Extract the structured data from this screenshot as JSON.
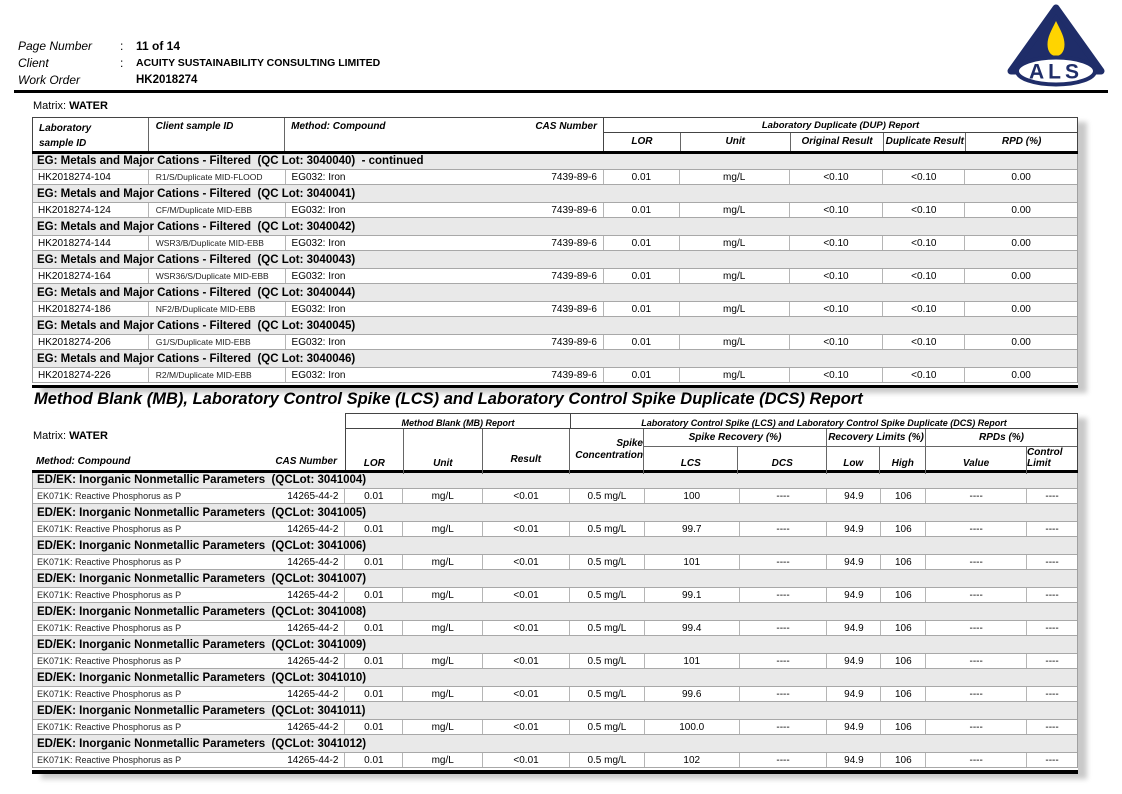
{
  "header": {
    "fields": [
      {
        "label": "Page Number",
        "colon": ":",
        "value": "11 of 14"
      },
      {
        "label": "Client",
        "colon": ":",
        "value": "ACUITY SUSTAINABILITY CONSULTING LIMITED"
      },
      {
        "label": "Work Order",
        "colon": ":",
        "value": "HK2018274"
      }
    ],
    "logo_text": "ALS"
  },
  "colors": {
    "logo_navy": "#1f2d69",
    "logo_yellow": "#ffd400",
    "logo_base_gray": "#b9c0cc",
    "table_bg_gray": "#e9e9e9"
  },
  "dup_table": {
    "matrix_label": "Matrix:",
    "matrix_value": "WATER",
    "span_header": "Laboratory Duplicate (DUP) Report",
    "headers": {
      "lab_line1": "Laboratory",
      "lab_line2": "sample ID",
      "client": "Client sample ID",
      "method": "Method: Compound",
      "cas": "CAS Number",
      "lor": "LOR",
      "unit": "Unit",
      "original": "Original Result",
      "duplicate": "Duplicate Result",
      "rpd": "RPD (%)"
    },
    "groups": [
      {
        "section": "EG: Metals and Major Cations - Filtered  (QC Lot: 3040040)  - continued",
        "lab_id": "HK2018274-104",
        "client_id": "R1/S/Duplicate MID-FLOOD",
        "method": "EG032: Iron",
        "cas": "7439-89-6",
        "lor": "0.01",
        "unit": "mg/L",
        "original": "<0.10",
        "duplicate": "<0.10",
        "rpd": "0.00"
      },
      {
        "section": "EG: Metals and Major Cations - Filtered  (QC Lot: 3040041)",
        "lab_id": "HK2018274-124",
        "client_id": "CF/M/Duplicate MID-EBB",
        "method": "EG032: Iron",
        "cas": "7439-89-6",
        "lor": "0.01",
        "unit": "mg/L",
        "original": "<0.10",
        "duplicate": "<0.10",
        "rpd": "0.00"
      },
      {
        "section": "EG: Metals and Major Cations - Filtered  (QC Lot: 3040042)",
        "lab_id": "HK2018274-144",
        "client_id": "WSR3/B/Duplicate MID-EBB",
        "method": "EG032: Iron",
        "cas": "7439-89-6",
        "lor": "0.01",
        "unit": "mg/L",
        "original": "<0.10",
        "duplicate": "<0.10",
        "rpd": "0.00"
      },
      {
        "section": "EG: Metals and Major Cations - Filtered  (QC Lot: 3040043)",
        "lab_id": "HK2018274-164",
        "client_id": "WSR36/S/Duplicate MID-EBB",
        "method": "EG032: Iron",
        "cas": "7439-89-6",
        "lor": "0.01",
        "unit": "mg/L",
        "original": "<0.10",
        "duplicate": "<0.10",
        "rpd": "0.00"
      },
      {
        "section": "EG: Metals and Major Cations - Filtered  (QC Lot: 3040044)",
        "lab_id": "HK2018274-186",
        "client_id": "NF2/B/Duplicate MID-EBB",
        "method": "EG032: Iron",
        "cas": "7439-89-6",
        "lor": "0.01",
        "unit": "mg/L",
        "original": "<0.10",
        "duplicate": "<0.10",
        "rpd": "0.00"
      },
      {
        "section": "EG: Metals and Major Cations - Filtered  (QC Lot: 3040045)",
        "lab_id": "HK2018274-206",
        "client_id": "G1/S/Duplicate MID-EBB",
        "method": "EG032: Iron",
        "cas": "7439-89-6",
        "lor": "0.01",
        "unit": "mg/L",
        "original": "<0.10",
        "duplicate": "<0.10",
        "rpd": "0.00"
      },
      {
        "section": "EG: Metals and Major Cations - Filtered  (QC Lot: 3040046)",
        "lab_id": "HK2018274-226",
        "client_id": "R2/M/Duplicate MID-EBB",
        "method": "EG032: Iron",
        "cas": "7439-89-6",
        "lor": "0.01",
        "unit": "mg/L",
        "original": "<0.10",
        "duplicate": "<0.10",
        "rpd": "0.00"
      }
    ]
  },
  "mb_section_title": "Method Blank (MB), Laboratory Control Spike (LCS) and Laboratory Control Spike Duplicate (DCS) Report",
  "mb_table": {
    "matrix_label": "Matrix:",
    "matrix_value": "WATER",
    "mb_span": "Method Blank (MB) Report",
    "lcs_span": "Laboratory Control Spike (LCS) and Laboratory Control Spike Duplicate (DCS) Report",
    "headers": {
      "method": "Method: Compound",
      "cas": "CAS Number",
      "lor": "LOR",
      "unit": "Unit",
      "result": "Result",
      "spike_line1": "Spike",
      "spike_line2": "Concentration",
      "spike_recovery": "Spike Recovery (%)",
      "lcs": "LCS",
      "dcs": "DCS",
      "recovery_limits": "Recovery Limits (%)",
      "low": "Low",
      "high": "High",
      "rpds": "RPDs (%)",
      "value": "Value",
      "control_limit": "Control Limit"
    },
    "groups": [
      {
        "section": "ED/EK: Inorganic Nonmetallic Parameters  (QCLot: 3041004)",
        "method": "EK071K: Reactive Phosphorus as P",
        "cas": "14265-44-2",
        "lor": "0.01",
        "unit": "mg/L",
        "result": "<0.01",
        "spike_conc": "0.5 mg/L",
        "lcs": "100",
        "dcs": "----",
        "low": "94.9",
        "high": "106",
        "value": "----",
        "control_limit": "----"
      },
      {
        "section": "ED/EK: Inorganic Nonmetallic Parameters  (QCLot: 3041005)",
        "method": "EK071K: Reactive Phosphorus as P",
        "cas": "14265-44-2",
        "lor": "0.01",
        "unit": "mg/L",
        "result": "<0.01",
        "spike_conc": "0.5 mg/L",
        "lcs": "99.7",
        "dcs": "----",
        "low": "94.9",
        "high": "106",
        "value": "----",
        "control_limit": "----"
      },
      {
        "section": "ED/EK: Inorganic Nonmetallic Parameters  (QCLot: 3041006)",
        "method": "EK071K: Reactive Phosphorus as P",
        "cas": "14265-44-2",
        "lor": "0.01",
        "unit": "mg/L",
        "result": "<0.01",
        "spike_conc": "0.5 mg/L",
        "lcs": "101",
        "dcs": "----",
        "low": "94.9",
        "high": "106",
        "value": "----",
        "control_limit": "----"
      },
      {
        "section": "ED/EK: Inorganic Nonmetallic Parameters  (QCLot: 3041007)",
        "method": "EK071K: Reactive Phosphorus as P",
        "cas": "14265-44-2",
        "lor": "0.01",
        "unit": "mg/L",
        "result": "<0.01",
        "spike_conc": "0.5 mg/L",
        "lcs": "99.1",
        "dcs": "----",
        "low": "94.9",
        "high": "106",
        "value": "----",
        "control_limit": "----"
      },
      {
        "section": "ED/EK: Inorganic Nonmetallic Parameters  (QCLot: 3041008)",
        "method": "EK071K: Reactive Phosphorus as P",
        "cas": "14265-44-2",
        "lor": "0.01",
        "unit": "mg/L",
        "result": "<0.01",
        "spike_conc": "0.5 mg/L",
        "lcs": "99.4",
        "dcs": "----",
        "low": "94.9",
        "high": "106",
        "value": "----",
        "control_limit": "----"
      },
      {
        "section": "ED/EK: Inorganic Nonmetallic Parameters  (QCLot: 3041009)",
        "method": "EK071K: Reactive Phosphorus as P",
        "cas": "14265-44-2",
        "lor": "0.01",
        "unit": "mg/L",
        "result": "<0.01",
        "spike_conc": "0.5 mg/L",
        "lcs": "101",
        "dcs": "----",
        "low": "94.9",
        "high": "106",
        "value": "----",
        "control_limit": "----"
      },
      {
        "section": "ED/EK: Inorganic Nonmetallic Parameters  (QCLot: 3041010)",
        "method": "EK071K: Reactive Phosphorus as P",
        "cas": "14265-44-2",
        "lor": "0.01",
        "unit": "mg/L",
        "result": "<0.01",
        "spike_conc": "0.5 mg/L",
        "lcs": "99.6",
        "dcs": "----",
        "low": "94.9",
        "high": "106",
        "value": "----",
        "control_limit": "----"
      },
      {
        "section": "ED/EK: Inorganic Nonmetallic Parameters  (QCLot: 3041011)",
        "method": "EK071K: Reactive Phosphorus as P",
        "cas": "14265-44-2",
        "lor": "0.01",
        "unit": "mg/L",
        "result": "<0.01",
        "spike_conc": "0.5 mg/L",
        "lcs": "100.0",
        "dcs": "----",
        "low": "94.9",
        "high": "106",
        "value": "----",
        "control_limit": "----"
      },
      {
        "section": "ED/EK: Inorganic Nonmetallic Parameters  (QCLot: 3041012)",
        "method": "EK071K: Reactive Phosphorus as P",
        "cas": "14265-44-2",
        "lor": "0.01",
        "unit": "mg/L",
        "result": "<0.01",
        "spike_conc": "0.5 mg/L",
        "lcs": "102",
        "dcs": "----",
        "low": "94.9",
        "high": "106",
        "value": "----",
        "control_limit": "----"
      }
    ]
  }
}
